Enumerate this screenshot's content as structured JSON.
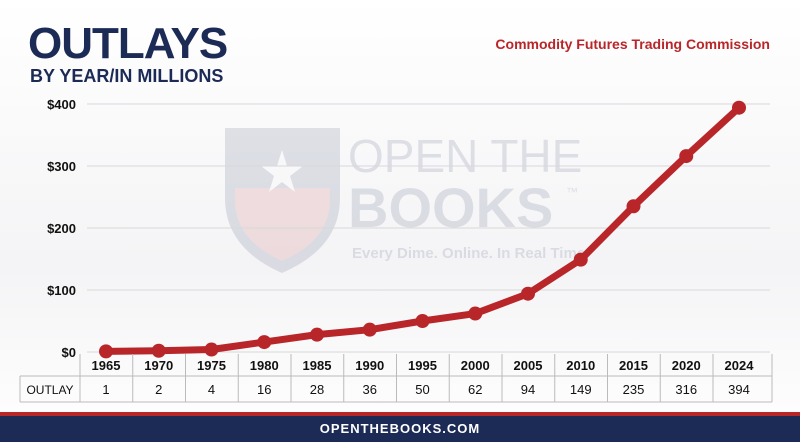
{
  "header": {
    "title": "OUTLAYS",
    "subtitle": "BY YEAR/IN MILLIONS",
    "agency": "Commodity Futures Trading Commission"
  },
  "watermark": {
    "line1": "OPEN THE",
    "line2": "BOOKS",
    "tagline": "Every Dime. Online. In Real Time.",
    "trademark": "™"
  },
  "footer": {
    "site": "OPENTHEBOOKS.COM"
  },
  "table": {
    "row_label": "OUTLAY"
  },
  "colors": {
    "line": "#b8262a",
    "navy": "#1c2a56",
    "grid": "#d8d8dc"
  },
  "chart_data": {
    "type": "line",
    "categories": [
      "1965",
      "1970",
      "1975",
      "1980",
      "1985",
      "1990",
      "1995",
      "2000",
      "2005",
      "2010",
      "2015",
      "2020",
      "2024"
    ],
    "values": [
      1,
      2,
      4,
      16,
      28,
      36,
      50,
      62,
      94,
      149,
      235,
      316,
      394
    ],
    "ylim": [
      0,
      400
    ],
    "yticks": [
      0,
      100,
      200,
      300,
      400
    ],
    "ytick_labels": [
      "$0",
      "$100",
      "$200",
      "$300",
      "$400"
    ],
    "grid": true
  }
}
